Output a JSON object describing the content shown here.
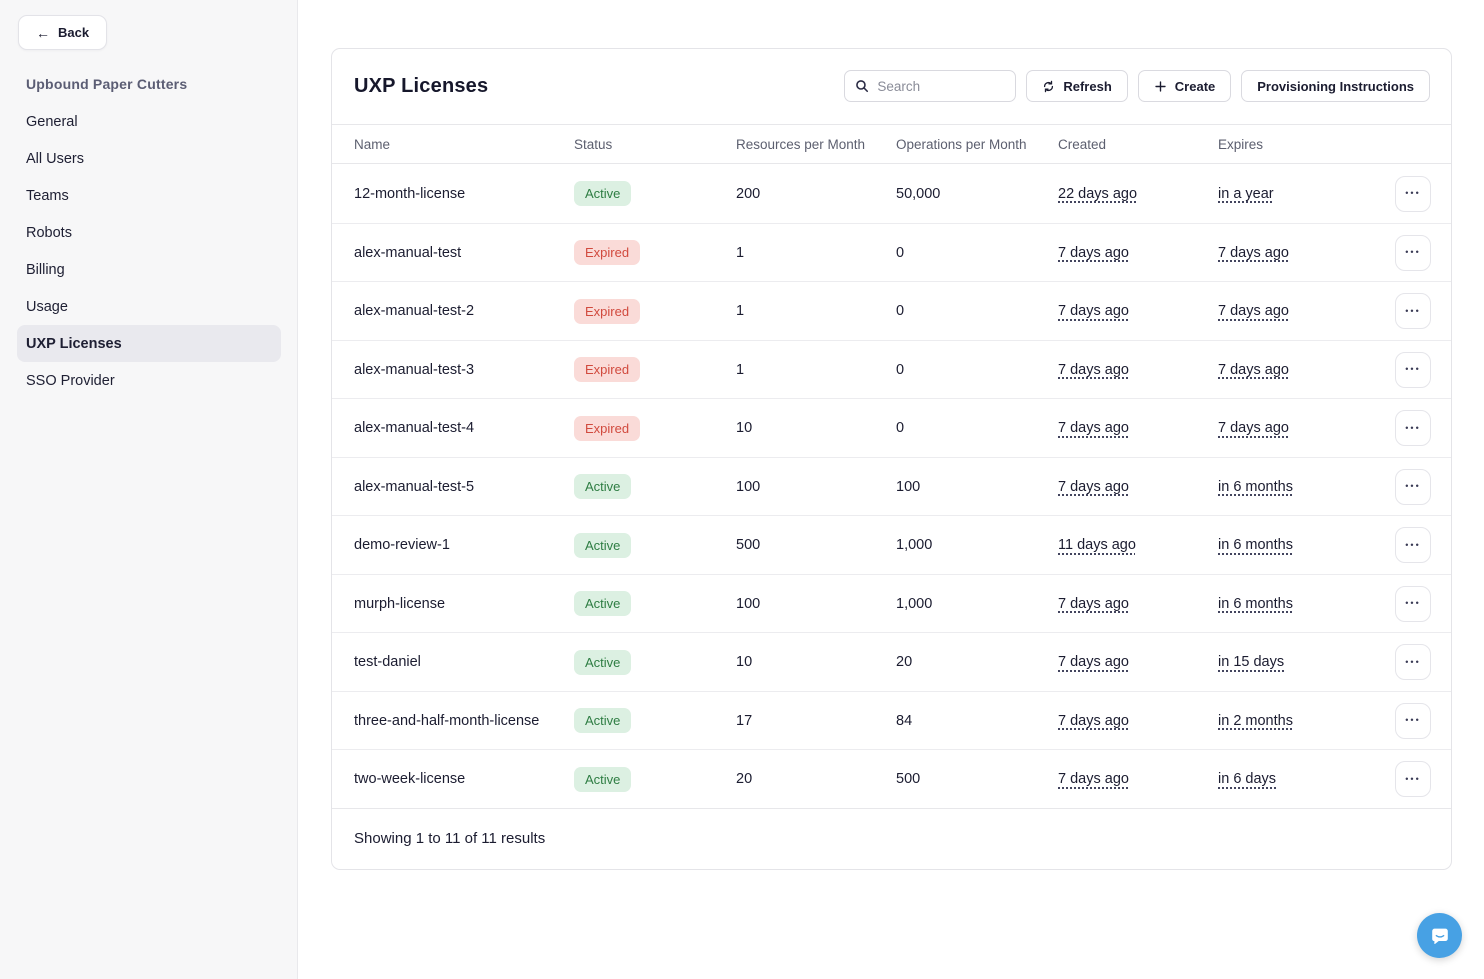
{
  "sidebar": {
    "back_label": "Back",
    "org_title": "Upbound Paper Cutters",
    "items": [
      {
        "label": "General",
        "active": false
      },
      {
        "label": "All Users",
        "active": false
      },
      {
        "label": "Teams",
        "active": false
      },
      {
        "label": "Robots",
        "active": false
      },
      {
        "label": "Billing",
        "active": false
      },
      {
        "label": "Usage",
        "active": false
      },
      {
        "label": "UXP Licenses",
        "active": true
      },
      {
        "label": "SSO Provider",
        "active": false
      }
    ]
  },
  "main": {
    "title": "UXP Licenses",
    "search_placeholder": "Search",
    "refresh_label": "Refresh",
    "create_label": "Create",
    "provisioning_label": "Provisioning Instructions",
    "table": {
      "columns": [
        "Name",
        "Status",
        "Resources per Month",
        "Operations per Month",
        "Created",
        "Expires"
      ],
      "rows": [
        {
          "name": "12-month-license",
          "status": "Active",
          "resources": "200",
          "operations": "50,000",
          "created": "22 days ago",
          "expires": "in a year"
        },
        {
          "name": "alex-manual-test",
          "status": "Expired",
          "resources": "1",
          "operations": "0",
          "created": "7 days ago",
          "expires": "7 days ago"
        },
        {
          "name": "alex-manual-test-2",
          "status": "Expired",
          "resources": "1",
          "operations": "0",
          "created": "7 days ago",
          "expires": "7 days ago"
        },
        {
          "name": "alex-manual-test-3",
          "status": "Expired",
          "resources": "1",
          "operations": "0",
          "created": "7 days ago",
          "expires": "7 days ago"
        },
        {
          "name": "alex-manual-test-4",
          "status": "Expired",
          "resources": "10",
          "operations": "0",
          "created": "7 days ago",
          "expires": "7 days ago"
        },
        {
          "name": "alex-manual-test-5",
          "status": "Active",
          "resources": "100",
          "operations": "100",
          "created": "7 days ago",
          "expires": "in 6 months"
        },
        {
          "name": "demo-review-1",
          "status": "Active",
          "resources": "500",
          "operations": "1,000",
          "created": "11 days ago",
          "expires": "in 6 months"
        },
        {
          "name": "murph-license",
          "status": "Active",
          "resources": "100",
          "operations": "1,000",
          "created": "7 days ago",
          "expires": "in 6 months"
        },
        {
          "name": "test-daniel",
          "status": "Active",
          "resources": "10",
          "operations": "20",
          "created": "7 days ago",
          "expires": "in 15 days"
        },
        {
          "name": "three-and-half-month-license",
          "status": "Active",
          "resources": "17",
          "operations": "84",
          "created": "7 days ago",
          "expires": "in 2 months"
        },
        {
          "name": "two-week-license",
          "status": "Active",
          "resources": "20",
          "operations": "500",
          "created": "7 days ago",
          "expires": "in 6 days"
        }
      ],
      "footer": "Showing 1 to 11 of 11 results"
    }
  },
  "icons": {
    "back": "left-arrow",
    "search": "magnifier",
    "refresh": "circular-arrows",
    "create": "plus",
    "row_actions": "ellipsis",
    "chat": "speech-bubble-smile"
  },
  "colors": {
    "status_active_bg": "#dcf0e2",
    "status_active_text": "#2e7d43",
    "status_expired_bg": "#fadbd8",
    "status_expired_text": "#d14a3e",
    "sidebar_bg": "#f7f7f8",
    "sidebar_selected_bg": "#e9e9ee",
    "org_title_text": "#5b5d74",
    "chat_bubble": "#47a1e4"
  }
}
